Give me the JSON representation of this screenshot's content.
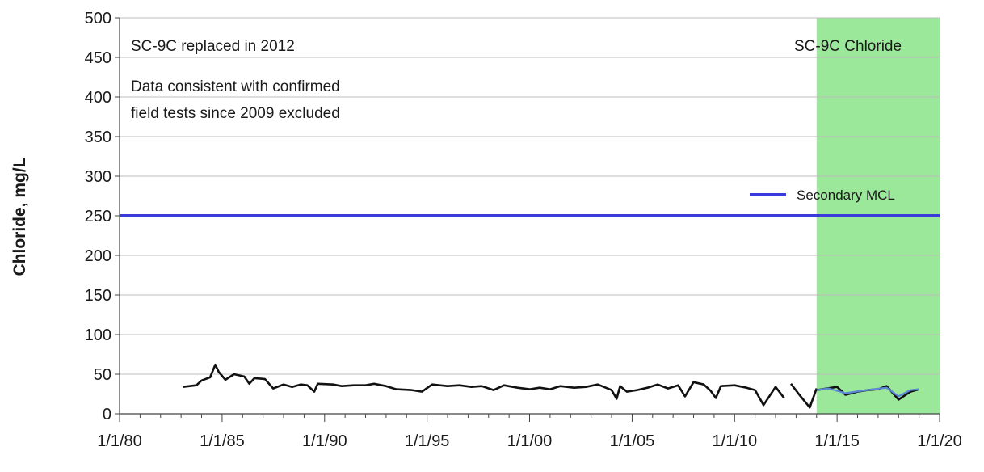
{
  "chart_data": {
    "type": "line",
    "ylabel": "Chloride, mg/L",
    "xlabel": "",
    "ylim": [
      0,
      500
    ],
    "yticks": [
      0,
      50,
      100,
      150,
      200,
      250,
      300,
      350,
      400,
      450,
      500
    ],
    "xlim": [
      "1980-01-01",
      "2020-01-01"
    ],
    "xticks": [
      {
        "date": "1980-01-01",
        "label": "1/1/80"
      },
      {
        "date": "1985-01-01",
        "label": "1/1/85"
      },
      {
        "date": "1990-01-01",
        "label": "1/1/90"
      },
      {
        "date": "1995-01-01",
        "label": "1/1/95"
      },
      {
        "date": "2000-01-01",
        "label": "1/1/00"
      },
      {
        "date": "2005-01-01",
        "label": "1/1/05"
      },
      {
        "date": "2010-01-01",
        "label": "1/1/10"
      },
      {
        "date": "2015-01-01",
        "label": "1/1/15"
      },
      {
        "date": "2020-01-01",
        "label": "1/1/20"
      }
    ],
    "grid": "horizontal",
    "highlight_region": {
      "start": "2014-01-01",
      "end": "2020-01-01",
      "color": "#9be89b"
    },
    "annotations": [
      "SC-9C replaced in 2012",
      "Data consistent with confirmed",
      "field tests since 2009 excluded",
      "SC-9C Chloride"
    ],
    "reference_line": {
      "name": "Secondary MCL",
      "value": 250,
      "color": "#3b3bdc",
      "legend_position": "right"
    },
    "series": [
      {
        "color": "#111111",
        "segments": [
          [
            [
              "1983-02-01",
              34
            ],
            [
              "1983-10-01",
              36
            ],
            [
              "1984-01-01",
              42
            ],
            [
              "1984-06-01",
              46
            ],
            [
              "1984-09-01",
              62
            ],
            [
              "1984-11-01",
              53
            ],
            [
              "1985-03-01",
              43
            ],
            [
              "1985-08-01",
              50
            ],
            [
              "1986-02-01",
              47
            ],
            [
              "1986-05-01",
              38
            ],
            [
              "1986-08-01",
              45
            ],
            [
              "1987-02-01",
              44
            ],
            [
              "1987-07-01",
              32
            ],
            [
              "1988-01-01",
              37
            ],
            [
              "1988-06-01",
              34
            ],
            [
              "1988-11-01",
              37
            ],
            [
              "1989-03-01",
              36
            ],
            [
              "1989-07-01",
              28
            ],
            [
              "1989-09-01",
              38
            ],
            [
              "1990-06-01",
              37
            ],
            [
              "1990-11-01",
              35
            ],
            [
              "1991-06-01",
              36
            ],
            [
              "1992-01-01",
              36
            ],
            [
              "1992-06-01",
              38
            ],
            [
              "1993-01-01",
              35
            ],
            [
              "1993-07-01",
              31
            ],
            [
              "1994-04-01",
              30
            ],
            [
              "1994-10-01",
              28
            ],
            [
              "1995-04-01",
              37
            ],
            [
              "1996-01-01",
              35
            ],
            [
              "1996-08-01",
              36
            ],
            [
              "1997-03-01",
              34
            ],
            [
              "1997-09-01",
              35
            ],
            [
              "1998-04-01",
              30
            ],
            [
              "1998-10-01",
              36
            ],
            [
              "1999-06-01",
              33
            ],
            [
              "2000-01-01",
              31
            ],
            [
              "2000-07-01",
              33
            ],
            [
              "2001-01-01",
              31
            ],
            [
              "2001-07-01",
              35
            ],
            [
              "2002-03-01",
              33
            ],
            [
              "2002-10-01",
              34
            ],
            [
              "2003-05-01",
              37
            ],
            [
              "2004-01-01",
              30
            ],
            [
              "2004-04-01",
              19
            ],
            [
              "2004-06-01",
              35
            ],
            [
              "2004-10-01",
              28
            ],
            [
              "2005-04-01",
              30
            ],
            [
              "2005-10-01",
              33
            ],
            [
              "2006-04-01",
              37
            ],
            [
              "2006-10-01",
              32
            ],
            [
              "2007-04-01",
              36
            ],
            [
              "2007-08-01",
              22
            ],
            [
              "2008-01-01",
              40
            ],
            [
              "2008-07-01",
              37
            ],
            [
              "2008-11-01",
              29
            ],
            [
              "2009-02-01",
              20
            ],
            [
              "2009-05-01",
              35
            ],
            [
              "2010-01-01",
              36
            ],
            [
              "2010-08-01",
              33
            ],
            [
              "2011-01-01",
              30
            ],
            [
              "2011-06-01",
              11
            ],
            [
              "2012-01-01",
              34
            ],
            [
              "2012-06-01",
              20
            ]
          ],
          [
            [
              "2012-10-01",
              38
            ],
            [
              "2013-03-01",
              24
            ],
            [
              "2013-09-01",
              8
            ],
            [
              "2014-01-01",
              32
            ]
          ],
          [
            [
              "2014-01-01",
              30
            ],
            [
              "2015-01-01",
              34
            ],
            [
              "2015-06-01",
              24
            ],
            [
              "2016-01-01",
              28
            ],
            [
              "2016-07-01",
              30
            ],
            [
              "2017-01-01",
              31
            ],
            [
              "2017-06-01",
              35
            ],
            [
              "2018-01-01",
              18
            ],
            [
              "2018-08-01",
              28
            ],
            [
              "2019-01-01",
              31
            ]
          ]
        ]
      },
      {
        "color": "#5a87d6",
        "segments": [
          [
            [
              "2014-01-01",
              30
            ],
            [
              "2014-08-01",
              32
            ],
            [
              "2015-06-01",
              26
            ],
            [
              "2016-03-01",
              29
            ],
            [
              "2016-10-01",
              31
            ],
            [
              "2017-06-01",
              33
            ],
            [
              "2018-01-01",
              22
            ],
            [
              "2018-08-01",
              30
            ],
            [
              "2019-01-01",
              31
            ]
          ]
        ]
      }
    ]
  }
}
